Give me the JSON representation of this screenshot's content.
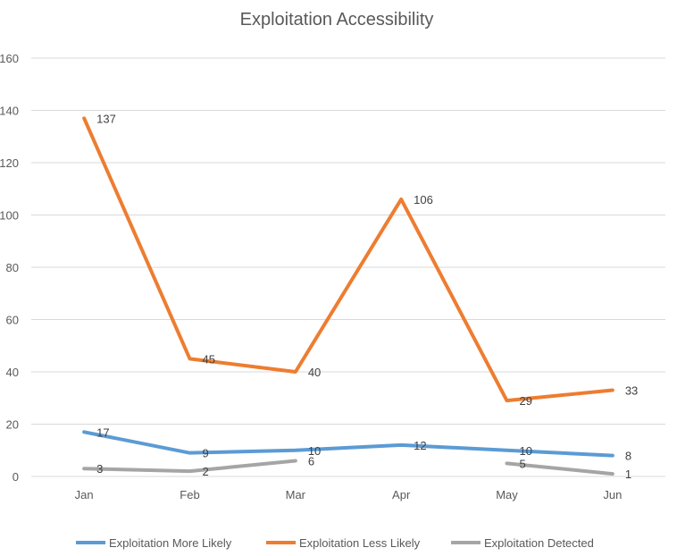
{
  "chart_data": {
    "type": "line",
    "title": "Exploitation Accessibility",
    "categories": [
      "Jan",
      "Feb",
      "Mar",
      "Apr",
      "May",
      "Jun"
    ],
    "ylim": [
      0,
      160
    ],
    "yticks": [
      0,
      20,
      40,
      60,
      80,
      100,
      120,
      140,
      160
    ],
    "grid": true,
    "legend_position": "bottom",
    "series": [
      {
        "name": "Exploitation More Likely",
        "color": "#5B9BD5",
        "values": [
          17,
          9,
          10,
          12,
          10,
          8
        ]
      },
      {
        "name": "Exploitation Less Likely",
        "color": "#ED7D31",
        "values": [
          137,
          45,
          40,
          106,
          29,
          33
        ]
      },
      {
        "name": "Exploitation Detected",
        "color": "#A5A5A5",
        "values": [
          3,
          2,
          6,
          null,
          5,
          1
        ]
      }
    ]
  }
}
